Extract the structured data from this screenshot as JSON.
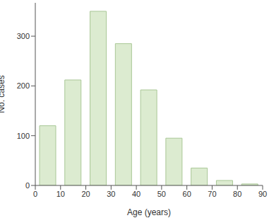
{
  "chart_data": {
    "type": "histogram",
    "bins": [
      0,
      10,
      20,
      30,
      40,
      50,
      60,
      70,
      80,
      90
    ],
    "values": [
      120,
      212,
      350,
      285,
      192,
      95,
      35,
      10,
      3
    ],
    "color": "#dcebd0",
    "xlabel": "Age (years)",
    "ylabel": "No. cases",
    "xlim": [
      0,
      90
    ],
    "xticks": [
      0,
      10,
      20,
      30,
      40,
      50,
      60,
      70,
      80,
      90
    ],
    "ylim": [
      0,
      367
    ],
    "yticks": [
      0,
      100,
      200,
      300
    ],
    "grid": false
  }
}
